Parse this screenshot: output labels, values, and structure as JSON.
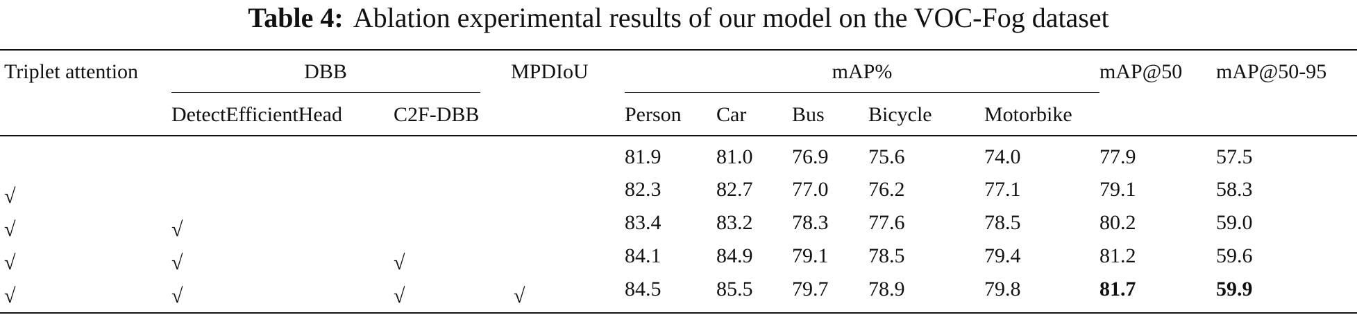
{
  "caption": {
    "label": "Table 4:",
    "text": "Ablation experimental results of our model on the VOC-Fog dataset"
  },
  "table": {
    "header": {
      "triplet": "Triplet attention",
      "dbb": "DBB",
      "dbb_sub": [
        "DetectEfficientHead",
        "C2F-DBB"
      ],
      "mpdiou": "MPDIoU",
      "map": "mAP%",
      "map_sub": [
        "Person",
        "Car",
        "Bus",
        "Bicycle",
        "Motorbike"
      ],
      "map50": "mAP@50",
      "map5095": "mAP@50-95"
    },
    "check": "√",
    "rows": [
      {
        "checks": 0,
        "values": [
          "81.9",
          "81.0",
          "76.9",
          "75.6",
          "74.0",
          "77.9",
          "57.5"
        ]
      },
      {
        "checks": 1,
        "values": [
          "82.3",
          "82.7",
          "77.0",
          "76.2",
          "77.1",
          "79.1",
          "58.3"
        ]
      },
      {
        "checks": 2,
        "values": [
          "83.4",
          "83.2",
          "78.3",
          "77.6",
          "78.5",
          "80.2",
          "59.0"
        ]
      },
      {
        "checks": 3,
        "values": [
          "84.1",
          "84.9",
          "79.1",
          "78.5",
          "79.4",
          "81.2",
          "59.6"
        ]
      },
      {
        "checks": 4,
        "values": [
          "84.5",
          "85.5",
          "79.7",
          "78.9",
          "79.8",
          "81.7",
          "59.9"
        ]
      }
    ],
    "bold": [
      [
        4,
        5
      ],
      [
        4,
        6
      ]
    ]
  }
}
